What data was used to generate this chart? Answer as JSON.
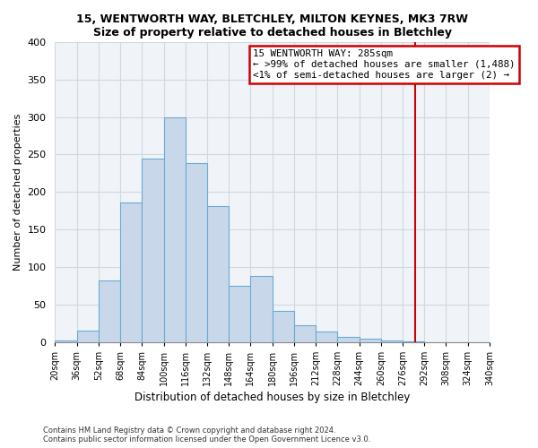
{
  "title": "15, WENTWORTH WAY, BLETCHLEY, MILTON KEYNES, MK3 7RW",
  "subtitle": "Size of property relative to detached houses in Bletchley",
  "xlabel": "Distribution of detached houses by size in Bletchley",
  "ylabel": "Number of detached properties",
  "bar_color": "#c8d8ea",
  "bar_edge_color": "#6aaad4",
  "bin_starts": [
    20,
    36,
    52,
    68,
    84,
    100,
    116,
    132,
    148,
    164,
    180,
    196,
    212,
    228,
    244,
    260,
    276,
    292,
    308,
    324
  ],
  "bin_width": 16,
  "counts": [
    2,
    15,
    82,
    186,
    245,
    300,
    239,
    181,
    75,
    88,
    42,
    22,
    14,
    7,
    4,
    2,
    1,
    0,
    0,
    0
  ],
  "property_line_x": 285,
  "property_line_color": "#cc0000",
  "annotation_title": "15 WENTWORTH WAY: 285sqm",
  "annotation_line1": "← >99% of detached houses are smaller (1,488)",
  "annotation_line2": "<1% of semi-detached houses are larger (2) →",
  "annotation_box_color": "#cc0000",
  "ylim": [
    0,
    400
  ],
  "yticks": [
    0,
    50,
    100,
    150,
    200,
    250,
    300,
    350,
    400
  ],
  "tick_labels": [
    "20sqm",
    "36sqm",
    "52sqm",
    "68sqm",
    "84sqm",
    "100sqm",
    "116sqm",
    "132sqm",
    "148sqm",
    "164sqm",
    "180sqm",
    "196sqm",
    "212sqm",
    "228sqm",
    "244sqm",
    "260sqm",
    "276sqm",
    "292sqm",
    "308sqm",
    "324sqm",
    "340sqm"
  ],
  "footnote1": "Contains HM Land Registry data © Crown copyright and database right 2024.",
  "footnote2": "Contains public sector information licensed under the Open Government Licence v3.0.",
  "bg_color": "#f0f4f8"
}
